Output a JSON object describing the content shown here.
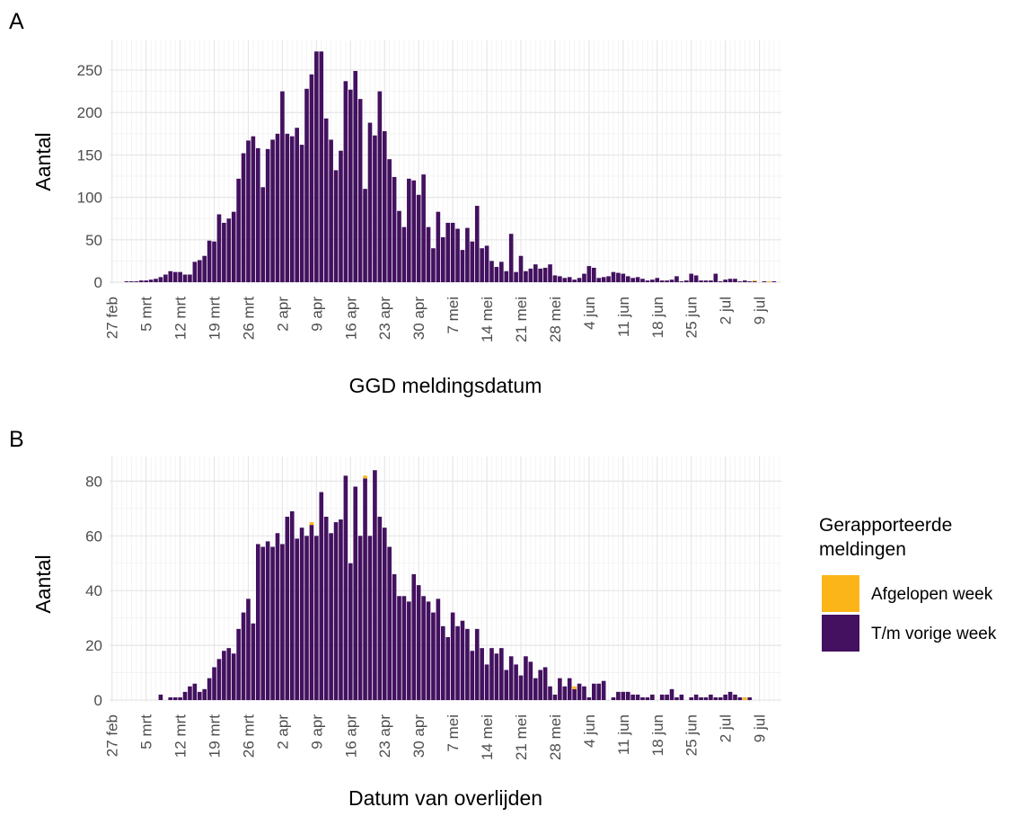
{
  "chart_data": [
    {
      "type": "bar",
      "stacked": true,
      "panel_label": "A",
      "xlabel": "GGD meldingsdatum",
      "ylabel": "Aantal",
      "categories": [
        "27 feb",
        null,
        null,
        null,
        null,
        null,
        null,
        "5 mrt",
        null,
        null,
        null,
        null,
        null,
        null,
        "12 mrt",
        null,
        null,
        null,
        null,
        null,
        null,
        "19 mrt",
        null,
        null,
        null,
        null,
        null,
        null,
        "26 mrt",
        null,
        null,
        null,
        null,
        null,
        null,
        "2 apr",
        null,
        null,
        null,
        null,
        null,
        null,
        "9 apr",
        null,
        null,
        null,
        null,
        null,
        null,
        "16 apr",
        null,
        null,
        null,
        null,
        null,
        null,
        "23 apr",
        null,
        null,
        null,
        null,
        null,
        null,
        "30 apr",
        null,
        null,
        null,
        null,
        null,
        null,
        "7 mei",
        null,
        null,
        null,
        null,
        null,
        null,
        "14 mei",
        null,
        null,
        null,
        null,
        null,
        null,
        "21 mei",
        null,
        null,
        null,
        null,
        null,
        null,
        "28 mei",
        null,
        null,
        null,
        null,
        null,
        null,
        "4 jun",
        null,
        null,
        null,
        null,
        null,
        null,
        "11 jun",
        null,
        null,
        null,
        null,
        null,
        null,
        "18 jun",
        null,
        null,
        null,
        null,
        null,
        null,
        "25 jun",
        null,
        null,
        null,
        null,
        null,
        null,
        "2 jul",
        null,
        null,
        null,
        null,
        null,
        null,
        "9 jul",
        null,
        null,
        null,
        null
      ],
      "series": [
        {
          "color": "#fcb519",
          "values": [
            0,
            0,
            0,
            0,
            0,
            0,
            0,
            0,
            0,
            0,
            0,
            0,
            0,
            0,
            0,
            0,
            0,
            0,
            0,
            0,
            0,
            0,
            0,
            0,
            0,
            0,
            0,
            0,
            0,
            0,
            0,
            0,
            0,
            0,
            0,
            0,
            0,
            0,
            0,
            0,
            0,
            0,
            0,
            0,
            0,
            0,
            0,
            0,
            0,
            0,
            0,
            0,
            0,
            0,
            0,
            0,
            0,
            0,
            0,
            0,
            0,
            0,
            0,
            0,
            0,
            0,
            0,
            0,
            0,
            0,
            0,
            0,
            0,
            0,
            0,
            0,
            0,
            0,
            0,
            0,
            0,
            0,
            0,
            0,
            0,
            0,
            0,
            0,
            0,
            0,
            0,
            0,
            0,
            0,
            0,
            0,
            0,
            0,
            0,
            0,
            0,
            0,
            0,
            0,
            0,
            0,
            0,
            0,
            0,
            0,
            0,
            0,
            0,
            0,
            0,
            0,
            0,
            0,
            0,
            0,
            0,
            0,
            0,
            0,
            0,
            0,
            0,
            0,
            0,
            0,
            0,
            0,
            1,
            0,
            0,
            1,
            0,
            0
          ]
        },
        {
          "color": "#43115f",
          "values": [
            0,
            0,
            0,
            1,
            1,
            1,
            2,
            2,
            3,
            4,
            6,
            9,
            13,
            12,
            12,
            9,
            9,
            24,
            26,
            31,
            49,
            48,
            80,
            70,
            75,
            83,
            122,
            152,
            167,
            172,
            158,
            112,
            157,
            168,
            175,
            225,
            175,
            172,
            182,
            162,
            228,
            245,
            272,
            272,
            193,
            168,
            132,
            155,
            237,
            227,
            249,
            216,
            110,
            188,
            173,
            225,
            178,
            145,
            124,
            84,
            65,
            122,
            120,
            103,
            127,
            65,
            40,
            83,
            53,
            70,
            70,
            63,
            38,
            64,
            48,
            90,
            40,
            43,
            25,
            18,
            24,
            13,
            57,
            12,
            31,
            13,
            16,
            21,
            16,
            17,
            21,
            8,
            7,
            5,
            6,
            3,
            5,
            10,
            19,
            17,
            5,
            6,
            7,
            12,
            11,
            10,
            7,
            5,
            6,
            4,
            2,
            3,
            5,
            2,
            2,
            3,
            7,
            1,
            2,
            10,
            8,
            2,
            2,
            2,
            10,
            1,
            3,
            4,
            4,
            1,
            2,
            1,
            1,
            0,
            1,
            0,
            1,
            0
          ]
        }
      ],
      "ylim": [
        0,
        285
      ],
      "yticks": [
        0,
        50,
        100,
        150,
        200,
        250
      ],
      "grid": true
    },
    {
      "type": "bar",
      "stacked": true,
      "panel_label": "B",
      "xlabel": "Datum van overlijden",
      "ylabel": "Aantal",
      "categories": [
        "27 feb",
        null,
        null,
        null,
        null,
        null,
        null,
        "5 mrt",
        null,
        null,
        null,
        null,
        null,
        null,
        "12 mrt",
        null,
        null,
        null,
        null,
        null,
        null,
        "19 mrt",
        null,
        null,
        null,
        null,
        null,
        null,
        "26 mrt",
        null,
        null,
        null,
        null,
        null,
        null,
        "2 apr",
        null,
        null,
        null,
        null,
        null,
        null,
        "9 apr",
        null,
        null,
        null,
        null,
        null,
        null,
        "16 apr",
        null,
        null,
        null,
        null,
        null,
        null,
        "23 apr",
        null,
        null,
        null,
        null,
        null,
        null,
        "30 apr",
        null,
        null,
        null,
        null,
        null,
        null,
        "7 mei",
        null,
        null,
        null,
        null,
        null,
        null,
        "14 mei",
        null,
        null,
        null,
        null,
        null,
        null,
        "21 mei",
        null,
        null,
        null,
        null,
        null,
        null,
        "28 mei",
        null,
        null,
        null,
        null,
        null,
        null,
        "4 jun",
        null,
        null,
        null,
        null,
        null,
        null,
        "11 jun",
        null,
        null,
        null,
        null,
        null,
        null,
        "18 jun",
        null,
        null,
        null,
        null,
        null,
        null,
        "25 jun",
        null,
        null,
        null,
        null,
        null,
        null,
        "2 jul",
        null,
        null,
        null,
        null,
        null,
        null,
        "9 jul",
        null,
        null,
        null,
        null
      ],
      "series": [
        {
          "name": "Afgelopen week",
          "color": "#fcb519",
          "values": [
            0,
            0,
            0,
            0,
            0,
            0,
            0,
            0,
            0,
            0,
            0,
            0,
            0,
            0,
            0,
            0,
            0,
            0,
            0,
            0,
            0,
            0,
            0,
            0,
            0,
            0,
            0,
            0,
            0,
            0,
            0,
            0,
            0,
            0,
            0,
            0,
            0,
            0,
            0,
            0,
            0,
            1,
            0,
            0,
            0,
            0,
            0,
            0,
            0,
            0,
            0,
            0,
            1,
            0,
            0,
            0,
            0,
            0,
            0,
            0,
            0,
            0,
            0,
            0,
            0,
            0,
            0,
            0,
            0,
            0,
            0,
            0,
            0,
            0,
            0,
            0,
            0,
            0,
            0,
            0,
            0,
            0,
            0,
            0,
            0,
            0,
            0,
            0,
            0,
            0,
            0,
            0,
            0,
            0,
            0,
            1,
            0,
            0,
            0,
            0,
            0,
            0,
            0,
            0,
            0,
            0,
            0,
            0,
            0,
            0,
            0,
            0,
            0,
            0,
            0,
            0,
            0,
            0,
            0,
            0,
            0,
            0,
            0,
            0,
            0,
            0,
            0,
            0,
            0,
            0,
            1,
            0,
            0,
            0,
            0,
            0,
            0,
            0
          ]
        },
        {
          "name": "T/m vorige week",
          "color": "#43115f",
          "values": [
            0,
            0,
            0,
            0,
            0,
            0,
            0,
            0,
            0,
            0,
            2,
            0,
            1,
            1,
            1,
            3,
            5,
            6,
            3,
            4,
            8,
            12,
            15,
            18,
            19,
            17,
            26,
            32,
            37,
            28,
            57,
            56,
            58,
            56,
            61,
            57,
            67,
            69,
            59,
            63,
            60,
            64,
            60,
            76,
            67,
            61,
            65,
            66,
            82,
            50,
            78,
            60,
            81,
            60,
            84,
            67,
            63,
            56,
            46,
            38,
            38,
            36,
            46,
            42,
            38,
            36,
            32,
            37,
            27,
            23,
            32,
            27,
            29,
            26,
            18,
            26,
            19,
            13,
            19,
            17,
            19,
            11,
            16,
            13,
            9,
            16,
            14,
            8,
            11,
            12,
            5,
            2,
            8,
            5,
            8,
            4,
            6,
            5,
            1,
            6,
            6,
            7,
            0,
            1,
            3,
            3,
            3,
            2,
            2,
            1,
            1,
            2,
            0,
            2,
            2,
            4,
            1,
            2,
            0,
            1,
            2,
            1,
            1,
            2,
            1,
            1,
            2,
            3,
            2,
            1,
            0,
            1,
            0,
            0,
            0,
            0,
            0,
            0
          ]
        }
      ],
      "ylim": [
        0,
        89
      ],
      "yticks": [
        0,
        20,
        40,
        60,
        80
      ],
      "grid": true,
      "legend": "right",
      "legend_title": "Gerapporteerde meldingen"
    }
  ]
}
